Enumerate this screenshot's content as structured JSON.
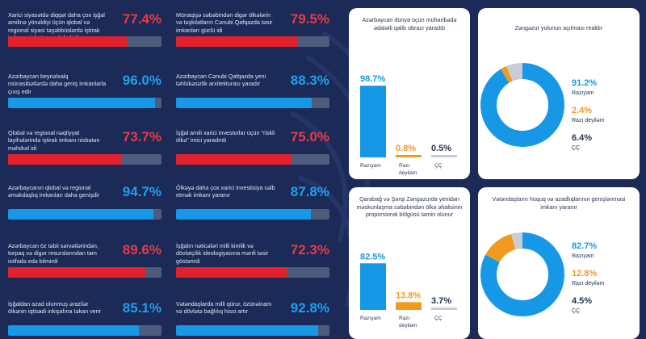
{
  "colors": {
    "background": "#1b2a57",
    "red": "#e3212d",
    "blue": "#1798e6",
    "orange": "#f39a1e",
    "grey": "#c7ccd6",
    "track": "#4f5b7c"
  },
  "stats": [
    {
      "text": "Xarici siyasətdə diqqət daha çox işğal amilinə yönəldiyi üçün qlobal və regional siyasi təşəbbüslərdə iştirak imkanı nisbətən məhdud idi",
      "pct": "77.4%",
      "value": 77.4,
      "color": "red"
    },
    {
      "text": "Münaqişə səbəbindən digər ölkələrin və təşkilatların Cənubi Qafqazda təsir imkanları güclü idi",
      "pct": "79.5%",
      "value": 79.5,
      "color": "red"
    },
    {
      "text": "Azərbaycan beynəlxalq münasibətlərdə daha geniş imkanlarla çıxış edir",
      "pct": "96.0%",
      "value": 96.0,
      "color": "blue"
    },
    {
      "text": "Azərbaycan Cənubi Qafqazda yeni təhlükəsizlik arxitekturası yaradır",
      "pct": "88.3%",
      "value": 88.3,
      "color": "blue"
    },
    {
      "text": "Qlobal və regional nəqliyyat layihələrində iştirak imkanı nisbətən məhdud idi",
      "pct": "73.7%",
      "value": 73.7,
      "color": "red"
    },
    {
      "text": "İşğal amili xarici investorlar üçün \"riskli ölkə\" imici yaradırdı",
      "pct": "75.0%",
      "value": 75.0,
      "color": "red"
    },
    {
      "text": "Azərbaycanın qlobal və regional əməkdaşlıq imkanları daha genişdir",
      "pct": "94.7%",
      "value": 94.7,
      "color": "blue"
    },
    {
      "text": "Ölkəyə daha çox xarici investisiya cəlb etmək imkanı yaranır",
      "pct": "87.8%",
      "value": 87.8,
      "color": "blue"
    },
    {
      "text": "Azərbaycan öz təbii sərvətlərindən, torpaq və digər resurslarından tam istifadə edə bilmirdi",
      "pct": "89.6%",
      "value": 89.6,
      "color": "red"
    },
    {
      "text": "İşğalın nəticələri milli kimlik və dövlətçilik ideologiyasına mənfi təsir göstərirdi",
      "pct": "72.3%",
      "value": 72.3,
      "color": "red"
    },
    {
      "text": "İşğaldan azad olunmuş ərazilər ölkənin iqtisadi inkişafına təkan verir",
      "pct": "85.1%",
      "value": 85.1,
      "color": "blue"
    },
    {
      "text": "Vətəndaşlarda milli qürur, özünəinam və dövlətə bağlılıq hissi artır",
      "pct": "92.8%",
      "value": 92.8,
      "color": "blue"
    }
  ],
  "chart_data": [
    {
      "type": "bar",
      "title": "Azərbaycan dünya üçün müharibədə ədalətli qalib obrazı yaradıb",
      "categories": [
        "Razıyam",
        "Razı deyiləm",
        "ÇÇ"
      ],
      "values": [
        98.7,
        0.8,
        0.5
      ],
      "labels": [
        "98.7%",
        "0.8%",
        "0.5%"
      ]
    },
    {
      "type": "pie",
      "title": "Zəngəzur yolunun açılması realdır",
      "categories": [
        "Razıyam",
        "Razı deyiləm",
        "ÇÇ"
      ],
      "values": [
        91.2,
        2.4,
        6.4
      ],
      "labels": [
        "91.2%",
        "2.4%",
        "6.4%"
      ]
    },
    {
      "type": "bar",
      "title": "Qarabağ və Şərqi Zəngəzurda yenidən məskunlaşma səbəbindən ölkə əhalisinin proporsional bölgüsü təmin olunur",
      "categories": [
        "Razıyam",
        "Razı deyiləm",
        "ÇÇ"
      ],
      "values": [
        82.5,
        13.8,
        3.7
      ],
      "labels": [
        "82.5%",
        "13.8%",
        "3.7%"
      ]
    },
    {
      "type": "pie",
      "title": "Vətəndaşların hüquq və azadlıqlarının genişlənməsi imkanı yaranır",
      "categories": [
        "Razıyam",
        "Razı deyiləm",
        "ÇÇ"
      ],
      "values": [
        82.7,
        12.8,
        4.5
      ],
      "labels": [
        "82.7%",
        "12.8%",
        "4.5%"
      ]
    }
  ]
}
